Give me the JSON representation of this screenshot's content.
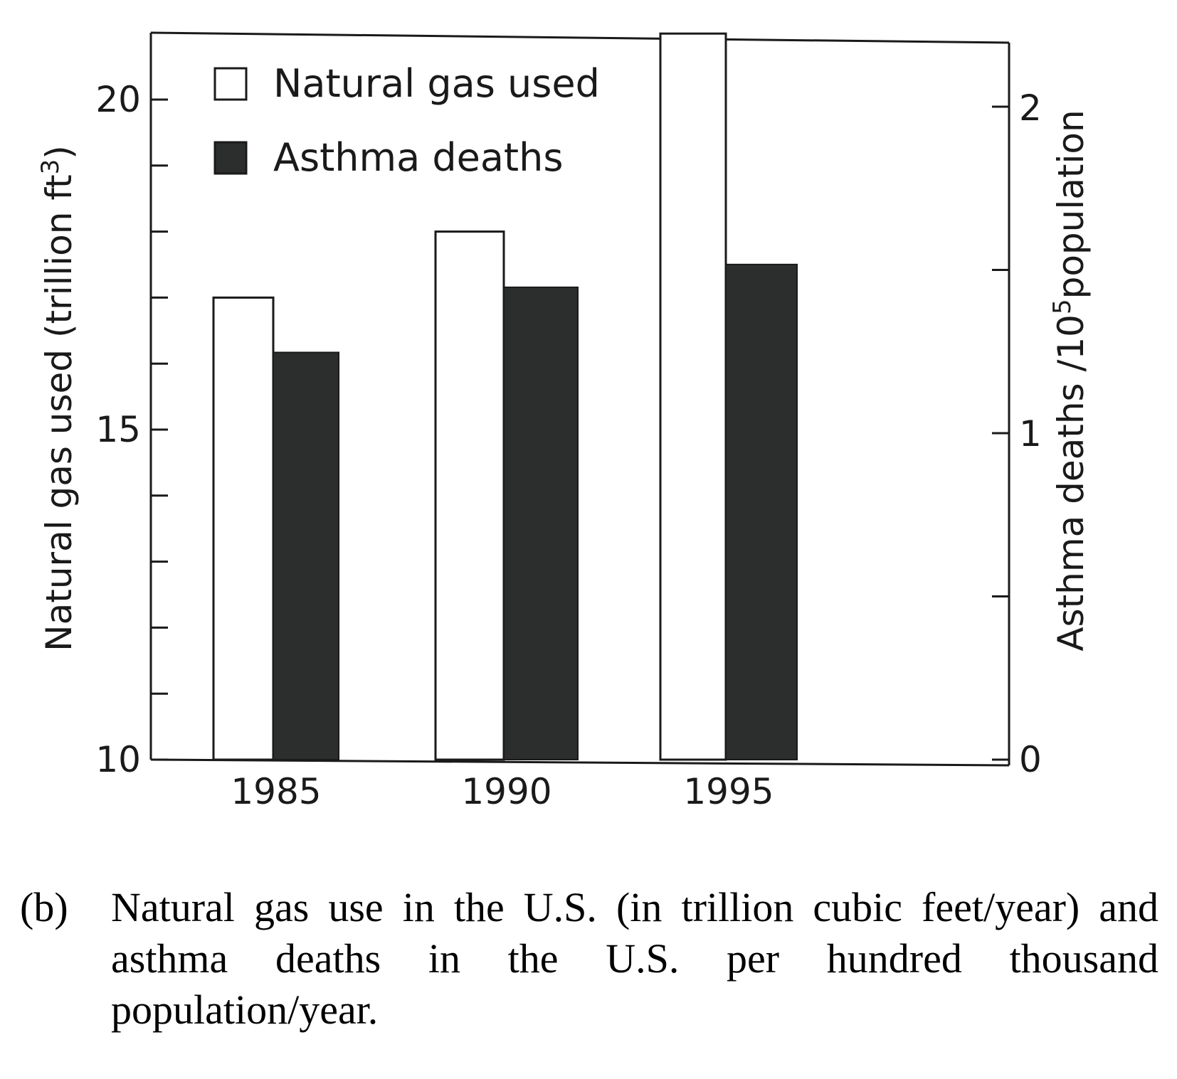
{
  "chart_data": {
    "type": "bar",
    "categories": [
      "1985",
      "1990",
      "1995"
    ],
    "series": [
      {
        "name": "Natural gas used",
        "axis": "left",
        "values": [
          17.0,
          18.0,
          21.0
        ],
        "fill": "#ffffff"
      },
      {
        "name": "Asthma deaths",
        "axis": "right",
        "values": [
          1.25,
          1.45,
          1.52
        ],
        "fill": "#2b2e2c"
      }
    ],
    "left_axis": {
      "label": "Natural gas used (trillion ft",
      "label_sup": "3",
      "label_close": ")",
      "ylim": [
        10,
        20.8
      ],
      "ticks": [
        10,
        15,
        20
      ],
      "minor_step": 1
    },
    "right_axis": {
      "label": "Asthma deaths /10",
      "label_sup": "5",
      "label_rest": "population",
      "ylim": [
        0,
        2.2
      ],
      "ticks": [
        0,
        1,
        2
      ],
      "minor_step": 0.5
    },
    "legend": {
      "placement": "top-left"
    },
    "grid": false
  },
  "caption": {
    "label": "(b)",
    "text": "Natural gas use in the U.S. (in trillion cubic feet/year) and asthma deaths in the U.S. per hundred thousand population/year."
  }
}
